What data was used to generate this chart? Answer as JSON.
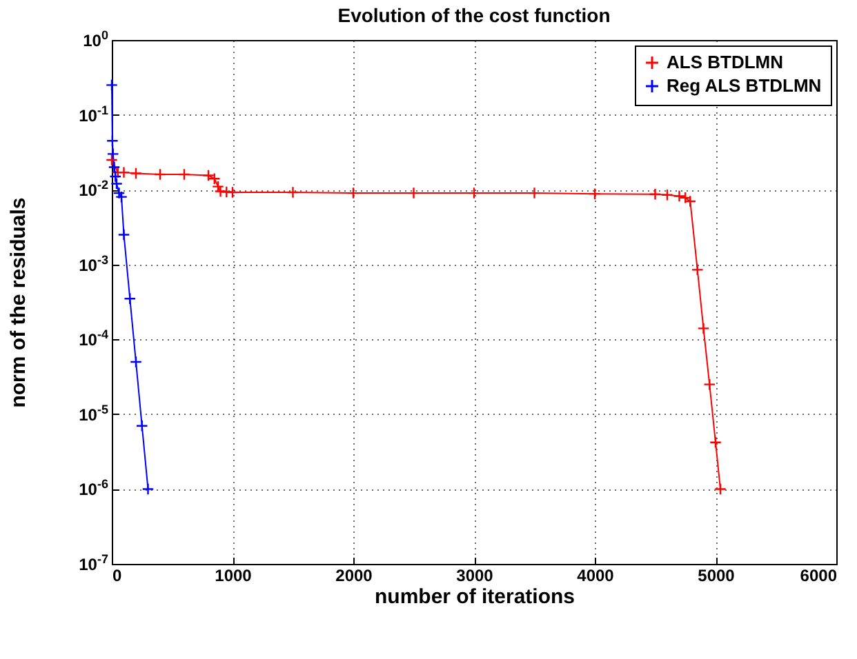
{
  "chart_data": {
    "type": "line",
    "title": "Evolution of the cost function",
    "xlabel": "number of iterations",
    "ylabel": "norm of the residuals",
    "xlim": [
      0,
      6000
    ],
    "xticks": [
      0,
      1000,
      2000,
      3000,
      4000,
      5000,
      6000
    ],
    "ylim": [
      1e-07,
      1
    ],
    "yticks": [
      {
        "value": 1,
        "label": "10$^{0}$"
      },
      {
        "value": 0.1,
        "label": "10$^{-1}$"
      },
      {
        "value": 0.01,
        "label": "10$^{-2}$"
      },
      {
        "value": 0.001,
        "label": "10$^{-3}$"
      },
      {
        "value": 0.0001,
        "label": "10$^{-4}$"
      },
      {
        "value": 1e-05,
        "label": "10$^{-5}$"
      },
      {
        "value": 1e-06,
        "label": "10$^{-6}$"
      },
      {
        "value": 1e-07,
        "label": "10$^{-7}$"
      }
    ],
    "log": "y",
    "grid": true,
    "legend": "top right",
    "marker": "cross",
    "line_style": "solid",
    "series": [
      {
        "name": "ALS BTDLMN",
        "color": "#ff0000",
        "x": [
          0,
          50,
          100,
          200,
          400,
          600,
          800,
          850,
          880,
          900,
          950,
          1000,
          1500,
          2000,
          2500,
          3000,
          3500,
          4000,
          4500,
          4600,
          4700,
          4750,
          4790,
          4850,
          4900,
          4950,
          5000,
          5040
        ],
        "values": [
          0.025,
          0.017,
          0.017,
          0.0165,
          0.016,
          0.016,
          0.0155,
          0.014,
          0.011,
          0.0095,
          0.0093,
          0.0092,
          0.0092,
          0.009,
          0.009,
          0.009,
          0.009,
          0.0088,
          0.0087,
          0.0085,
          0.0082,
          0.0078,
          0.007,
          0.00085,
          0.00014,
          2.5e-05,
          4.2e-06,
          1e-06
        ]
      },
      {
        "name": "Reg ALS BTDLMN",
        "color": "#0000ff",
        "x": [
          0,
          5,
          10,
          20,
          30,
          40,
          60,
          80,
          100,
          150,
          200,
          250,
          300
        ],
        "values": [
          0.25,
          0.045,
          0.03,
          0.02,
          0.015,
          0.012,
          0.009,
          0.008,
          0.0025,
          0.00035,
          5e-05,
          7e-06,
          1e-06
        ]
      }
    ]
  }
}
